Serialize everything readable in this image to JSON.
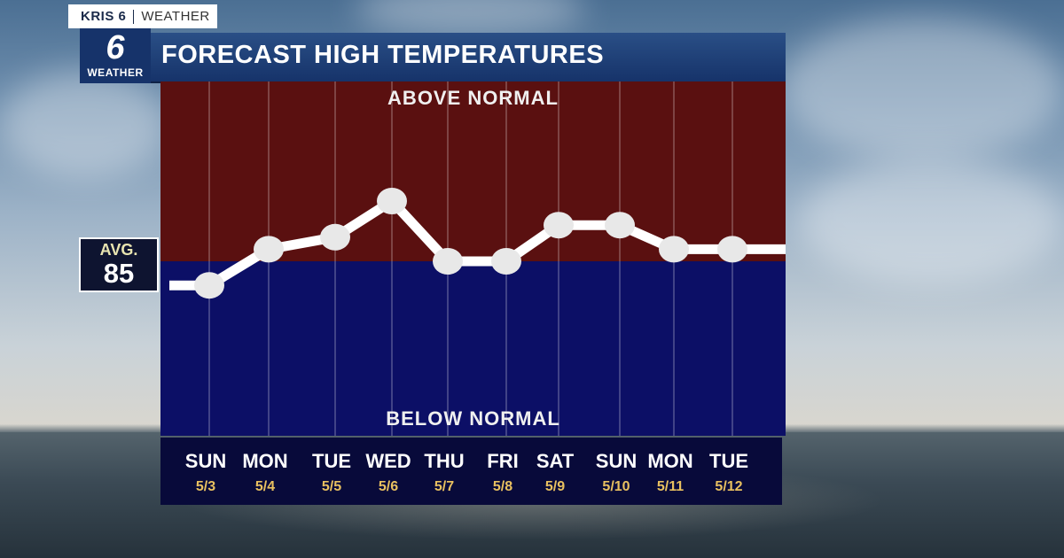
{
  "brand": {
    "station": "KRIS 6",
    "section": "WEATHER",
    "logo_number": "6",
    "logo_label": "WEATHER"
  },
  "title": "FORECAST HIGH TEMPERATURES",
  "bands": {
    "above": "ABOVE NORMAL",
    "below": "BELOW NORMAL"
  },
  "average": {
    "label": "AVG.",
    "value": "85"
  },
  "colors": {
    "above": "#5a1010",
    "below": "#0c0f66",
    "line": "#ffffff",
    "header": "#1f4178"
  },
  "chart_data": {
    "type": "line",
    "title": "FORECAST HIGH TEMPERATURES",
    "categories": [
      "SUN 5/3",
      "MON 5/4",
      "TUE 5/5",
      "WED 5/6",
      "THU 5/7",
      "FRI 5/8",
      "SAT 5/9",
      "SUN 5/10",
      "MON 5/11",
      "TUE 5/12"
    ],
    "days": [
      "SUN",
      "MON",
      "TUE",
      "WED",
      "THU",
      "FRI",
      "SAT",
      "SUN",
      "MON",
      "TUE"
    ],
    "dates": [
      "5/3",
      "5/4",
      "5/5",
      "5/6",
      "5/7",
      "5/8",
      "5/9",
      "5/10",
      "5/11",
      "5/12"
    ],
    "values": [
      83,
      86,
      87,
      90,
      85,
      85,
      88,
      88,
      86,
      86
    ],
    "reference_line": 85,
    "ylim": [
      76,
      94
    ],
    "grid": true
  }
}
